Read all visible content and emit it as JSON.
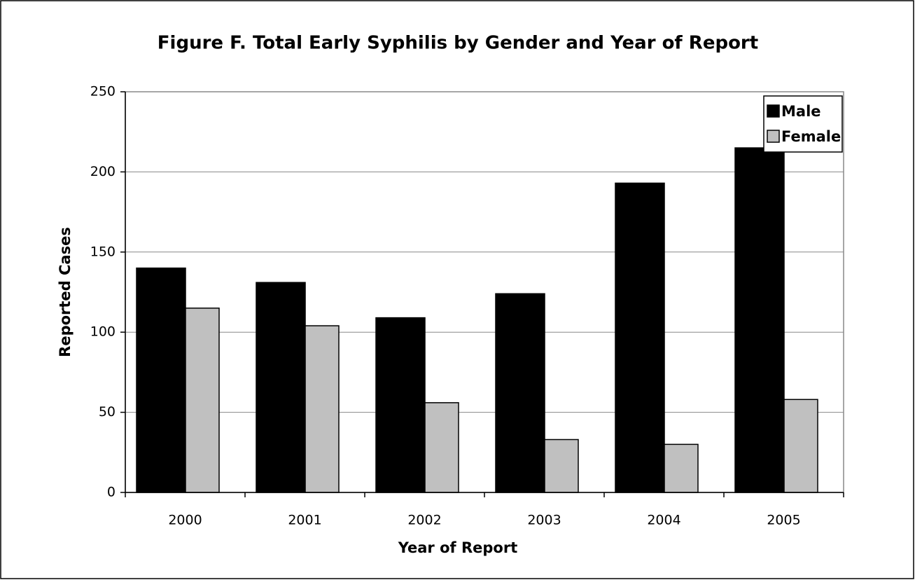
{
  "chart_data": {
    "type": "bar",
    "title": "Figure F. Total Early Syphilis by Gender and Year of Report",
    "x_label": "Year of Report",
    "y_label": "Reported Cases",
    "categories": [
      "2000",
      "2001",
      "2002",
      "2003",
      "2004",
      "2005"
    ],
    "series": [
      {
        "name": "Male",
        "color": "#000000",
        "values": [
          140,
          131,
          109,
          124,
          193,
          215
        ]
      },
      {
        "name": "Female",
        "color": "#c0c0c0",
        "values": [
          115,
          104,
          56,
          33,
          30,
          58
        ]
      }
    ],
    "ylim": [
      0,
      250
    ],
    "yticks": [
      0,
      50,
      100,
      150,
      200,
      250
    ],
    "grid": true,
    "legend": "top-right"
  }
}
